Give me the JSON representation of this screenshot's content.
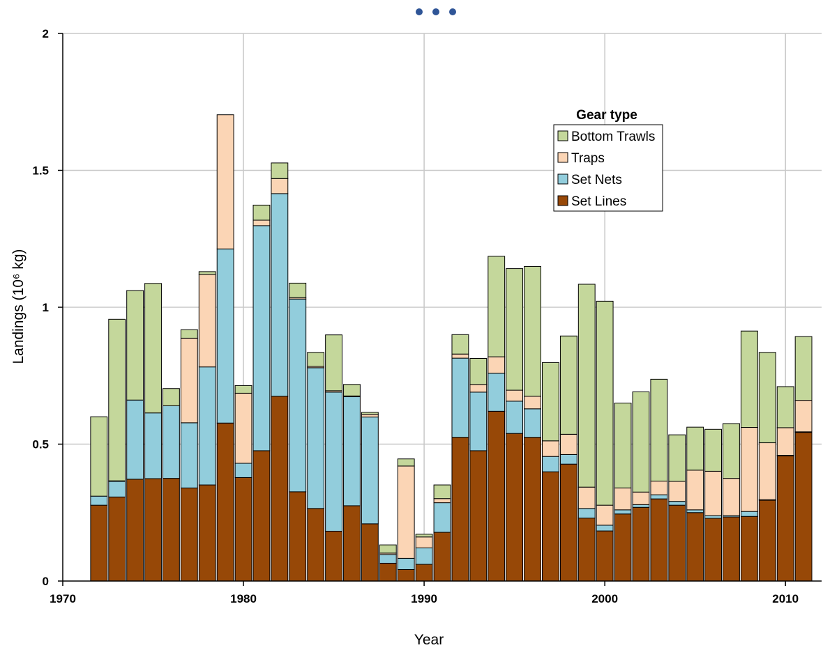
{
  "chart_data": {
    "type": "bar",
    "stacked": true,
    "xlabel": "Year",
    "ylabel": "Landings (10⁶ kg)",
    "xlim": [
      1970,
      2012
    ],
    "ylim": [
      0,
      2
    ],
    "x_ticks": [
      1970,
      1980,
      1990,
      2000,
      2010
    ],
    "y_ticks": [
      0,
      0.5,
      1,
      1.5,
      2
    ],
    "y_tick_labels": [
      "0",
      "0.5",
      "1",
      "1.5",
      "2"
    ],
    "grid": true,
    "legend": {
      "title": "Gear type",
      "placement": "upper-center-right",
      "entries": [
        "Bottom Trawls",
        "Traps",
        "Set Nets",
        "Set Lines"
      ]
    },
    "years": [
      1972,
      1973,
      1974,
      1975,
      1976,
      1977,
      1978,
      1979,
      1980,
      1981,
      1982,
      1983,
      1984,
      1985,
      1986,
      1987,
      1988,
      1989,
      1990,
      1991,
      1992,
      1993,
      1994,
      1995,
      1996,
      1997,
      1998,
      1999,
      2000,
      2001,
      2002,
      2003,
      2004,
      2005,
      2006,
      2007,
      2008,
      2009,
      2010,
      2011
    ],
    "series": [
      {
        "name": "Set Lines",
        "color": "#974807",
        "values": [
          0.277,
          0.307,
          0.372,
          0.374,
          0.375,
          0.34,
          0.351,
          0.577,
          0.378,
          0.476,
          0.675,
          0.326,
          0.265,
          0.182,
          0.275,
          0.209,
          0.065,
          0.042,
          0.061,
          0.178,
          0.525,
          0.476,
          0.62,
          0.539,
          0.525,
          0.399,
          0.427,
          0.23,
          0.183,
          0.245,
          0.269,
          0.3,
          0.277,
          0.25,
          0.229,
          0.234,
          0.236,
          0.295,
          0.457,
          0.543
        ]
      },
      {
        "name": "Set Nets",
        "color": "#92CDDC",
        "values": [
          0.033,
          0.057,
          0.289,
          0.24,
          0.265,
          0.238,
          0.431,
          0.636,
          0.052,
          0.822,
          0.74,
          0.704,
          0.514,
          0.508,
          0.398,
          0.39,
          0.032,
          0.041,
          0.06,
          0.108,
          0.289,
          0.214,
          0.139,
          0.118,
          0.104,
          0.056,
          0.035,
          0.035,
          0.021,
          0.015,
          0.01,
          0.015,
          0.014,
          0.01,
          0.01,
          0.005,
          0.018,
          0.002,
          0.002,
          0.002
        ]
      },
      {
        "name": "Traps",
        "color": "#FBD5B5",
        "values": [
          0,
          0.002,
          0,
          0,
          0,
          0.309,
          0.338,
          0.49,
          0.256,
          0.02,
          0.055,
          0.005,
          0.005,
          0.005,
          0.003,
          0.01,
          0.005,
          0.337,
          0.04,
          0.015,
          0.015,
          0.028,
          0.06,
          0.04,
          0.046,
          0.057,
          0.074,
          0.078,
          0.073,
          0.08,
          0.046,
          0.05,
          0.073,
          0.145,
          0.162,
          0.136,
          0.307,
          0.208,
          0.101,
          0.115
        ]
      },
      {
        "name": "Bottom Trawls",
        "color": "#C4D79B",
        "values": [
          0.29,
          0.59,
          0.4,
          0.473,
          0.063,
          0.031,
          0.01,
          0.0,
          0.028,
          0.055,
          0.057,
          0.053,
          0.051,
          0.204,
          0.042,
          0.007,
          0.03,
          0.026,
          0.01,
          0.05,
          0.071,
          0.095,
          0.367,
          0.444,
          0.474,
          0.286,
          0.359,
          0.741,
          0.745,
          0.31,
          0.366,
          0.372,
          0.17,
          0.157,
          0.153,
          0.2,
          0.352,
          0.33,
          0.15,
          0.233
        ]
      }
    ]
  }
}
